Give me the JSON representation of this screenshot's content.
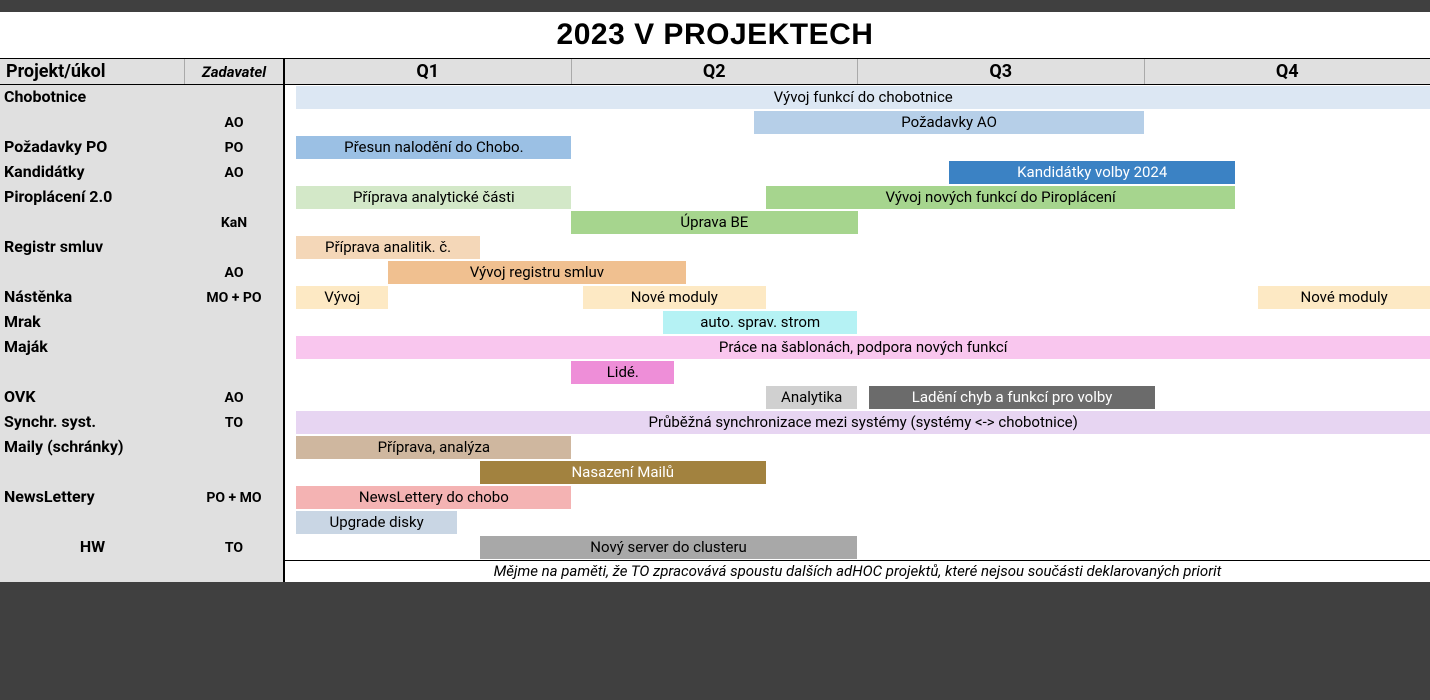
{
  "title": "2023 V PROJEKTECH",
  "headers": {
    "project": "Projekt/úkol",
    "zadavatel": "Zadavatel",
    "q1": "Q1",
    "q2": "Q2",
    "q3": "Q3",
    "q4": "Q4"
  },
  "colors": {
    "page_bg": "#404040",
    "sheet_bg": "#ffffff",
    "header_bg": "#e0e0e0",
    "sidebar_bg": "#e0e0e0",
    "border_dark": "#000000",
    "border_light": "#aaaaaa"
  },
  "gantt_scale": {
    "total_pct": 100
  },
  "rows": [
    {
      "project": "Chobotnice",
      "zadavatel": "",
      "project_align": "left",
      "bars": [
        {
          "label": "Vývoj funkcí do chobotnice",
          "start_pct": 1,
          "width_pct": 99,
          "bg": "#dce7f3",
          "fg": "#000000"
        }
      ]
    },
    {
      "project": "",
      "zadavatel": "AO",
      "bars": [
        {
          "label": "Požadavky AO",
          "start_pct": 41,
          "width_pct": 34,
          "bg": "#b6cfe8",
          "fg": "#000000"
        }
      ]
    },
    {
      "project": "Požadavky PO",
      "zadavatel": "PO",
      "bars": [
        {
          "label": "Přesun nalodění do Chobo.",
          "start_pct": 1,
          "width_pct": 24,
          "bg": "#9bc0e4",
          "fg": "#000000"
        }
      ]
    },
    {
      "project": "Kandidátky",
      "zadavatel": "AO",
      "bars": [
        {
          "label": "Kandidátky volby 2024",
          "start_pct": 58,
          "width_pct": 25,
          "bg": "#3b82c4",
          "fg": "#ffffff"
        }
      ]
    },
    {
      "project": "Piroplácení 2.0",
      "zadavatel": "",
      "bars": [
        {
          "label": "Příprava analytické části",
          "start_pct": 1,
          "width_pct": 24,
          "bg": "#d3e8c8",
          "fg": "#000000"
        },
        {
          "label": "Vývoj nových funkcí do Piroplácení",
          "start_pct": 42,
          "width_pct": 41,
          "bg": "#a6d58e",
          "fg": "#000000"
        }
      ]
    },
    {
      "project": "",
      "zadavatel": "KaN",
      "bars": [
        {
          "label": "Úprava BE",
          "start_pct": 25,
          "width_pct": 25,
          "bg": "#a6d58e",
          "fg": "#000000"
        }
      ]
    },
    {
      "project": "Registr smluv",
      "zadavatel": "",
      "bars": [
        {
          "label": "Příprava analitik. č.",
          "start_pct": 1,
          "width_pct": 16,
          "bg": "#f4d7b8",
          "fg": "#000000"
        }
      ]
    },
    {
      "project": "",
      "zadavatel": "AO",
      "bars": [
        {
          "label": "Vývoj registru smluv",
          "start_pct": 9,
          "width_pct": 26,
          "bg": "#f0c090",
          "fg": "#000000"
        }
      ]
    },
    {
      "project": "Nástěnka",
      "zadavatel": "MO + PO",
      "bars": [
        {
          "label": "Vývoj",
          "start_pct": 1,
          "width_pct": 8,
          "bg": "#fde9c4",
          "fg": "#000000"
        },
        {
          "label": "Nové moduly",
          "start_pct": 26,
          "width_pct": 16,
          "bg": "#fde9c4",
          "fg": "#000000"
        },
        {
          "label": "Nové moduly",
          "start_pct": 85,
          "width_pct": 15,
          "bg": "#fde9c4",
          "fg": "#000000"
        }
      ]
    },
    {
      "project": "Mrak",
      "zadavatel": "",
      "bars": [
        {
          "label": "auto. sprav. strom",
          "start_pct": 33,
          "width_pct": 17,
          "bg": "#b5f2f4",
          "fg": "#000000"
        }
      ]
    },
    {
      "project": "Maják",
      "zadavatel": "",
      "bars": [
        {
          "label": "Práce na šablonách, podpora nových funkcí",
          "start_pct": 1,
          "width_pct": 99,
          "bg": "#f9c6ee",
          "fg": "#000000"
        }
      ]
    },
    {
      "project": "",
      "zadavatel": "",
      "bars": [
        {
          "label": "Lidé.",
          "start_pct": 25,
          "width_pct": 9,
          "bg": "#ee8ed8",
          "fg": "#000000"
        }
      ]
    },
    {
      "project": "OVK",
      "zadavatel": "AO",
      "bars": [
        {
          "label": "Analytika",
          "start_pct": 42,
          "width_pct": 8,
          "bg": "#d0d0d0",
          "fg": "#000000"
        },
        {
          "label": "Ladění chyb a funkcí pro volby",
          "start_pct": 51,
          "width_pct": 25,
          "bg": "#6b6b6b",
          "fg": "#ffffff"
        }
      ]
    },
    {
      "project": "Synchr. syst.",
      "zadavatel": "TO",
      "bars": [
        {
          "label": "Průběžná synchronizace mezi systémy (systémy <-> chobotnice)",
          "start_pct": 1,
          "width_pct": 99,
          "bg": "#e7d5f2",
          "fg": "#000000"
        }
      ]
    },
    {
      "project": "Maily (schránky)",
      "zadavatel": "",
      "bars": [
        {
          "label": "Příprava, analýza",
          "start_pct": 1,
          "width_pct": 24,
          "bg": "#cfb79f",
          "fg": "#000000"
        }
      ]
    },
    {
      "project": "",
      "zadavatel": "",
      "bars": [
        {
          "label": "Nasazení Mailů",
          "start_pct": 17,
          "width_pct": 25,
          "bg": "#a2823f",
          "fg": "#ffffff"
        }
      ]
    },
    {
      "project": "NewsLettery",
      "zadavatel": "PO + MO",
      "bars": [
        {
          "label": "NewsLettery do chobo",
          "start_pct": 1,
          "width_pct": 24,
          "bg": "#f4b3b3",
          "fg": "#000000"
        }
      ]
    },
    {
      "project": "",
      "zadavatel": "",
      "bars": [
        {
          "label": "Upgrade disky",
          "start_pct": 1,
          "width_pct": 14,
          "bg": "#c9d6e4",
          "fg": "#000000"
        }
      ]
    },
    {
      "project": "HW",
      "zadavatel": "TO",
      "project_align": "center",
      "bars": [
        {
          "label": "Nový server do clusteru",
          "start_pct": 17,
          "width_pct": 33,
          "bg": "#a8a8a8",
          "fg": "#000000"
        }
      ]
    }
  ],
  "footer": "Mějme na paměti, že TO zpracovává spoustu dalších adHOC projektů, které nejsou součásti deklarovaných priorit"
}
